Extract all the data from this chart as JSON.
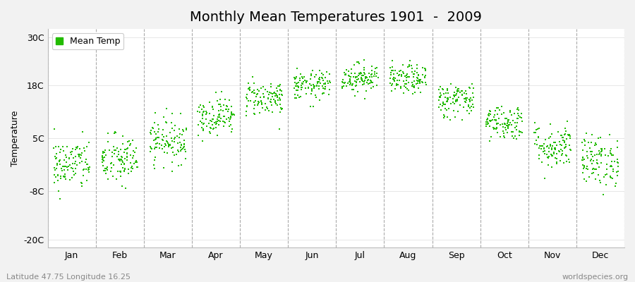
{
  "title": "Monthly Mean Temperatures 1901  -  2009",
  "ylabel": "Temperature",
  "ytick_labels": [
    "30C",
    "18C",
    "5C",
    "-8C",
    "-20C"
  ],
  "ytick_values": [
    30,
    18,
    5,
    -8,
    -20
  ],
  "ylim": [
    -22,
    32
  ],
  "xlabel_months": [
    "Jan",
    "Feb",
    "Mar",
    "Apr",
    "May",
    "Jun",
    "Jul",
    "Aug",
    "Sep",
    "Oct",
    "Nov",
    "Dec"
  ],
  "legend_label": "Mean Temp",
  "dot_color": "#22bb00",
  "background_color": "#f2f2f2",
  "plot_bg_color": "#ffffff",
  "footer_left": "Latitude 47.75 Longitude 16.25",
  "footer_right": "worldspecies.org",
  "monthly_means": [
    -1.5,
    -0.5,
    4.5,
    10.5,
    15.0,
    18.0,
    20.0,
    19.5,
    14.5,
    9.0,
    3.0,
    -0.5
  ],
  "monthly_stds": [
    3.2,
    3.2,
    2.8,
    2.3,
    2.2,
    1.8,
    1.8,
    1.8,
    2.2,
    2.2,
    2.8,
    3.2
  ],
  "n_years": 109,
  "title_fontsize": 14,
  "axis_fontsize": 9,
  "tick_fontsize": 9,
  "footer_fontsize": 8
}
